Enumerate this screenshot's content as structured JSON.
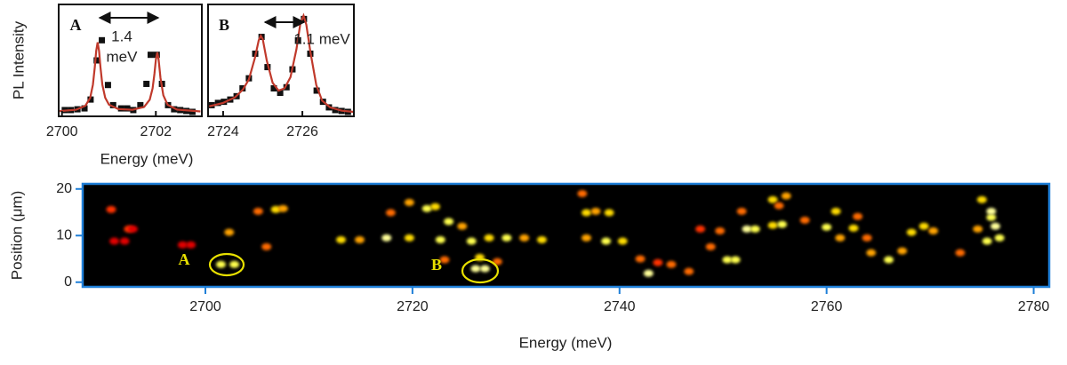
{
  "chart_data": [
    {
      "type": "scatter",
      "xlabel": "Energy (meV)",
      "ylabel": "PL Intensity",
      "xlim": [
        2699.93,
        2702.98
      ],
      "ylim": [
        0,
        1
      ],
      "xticks": [
        2700,
        2702
      ],
      "annotations": [
        "A",
        "1.4",
        "meV"
      ],
      "series": [
        {
          "color": "#111111",
          "marker": "square",
          "x": [
            2700.06,
            2700.19,
            2700.33,
            2700.48,
            2700.61,
            2700.74,
            2700.85,
            2700.98,
            2701.09,
            2701.26,
            2701.39,
            2701.52,
            2701.67,
            2701.8,
            2701.89,
            2702.02,
            2702.13,
            2702.26,
            2702.39,
            2702.52,
            2702.65,
            2702.78
          ],
          "values": [
            0.056,
            0.056,
            0.063,
            0.071,
            0.15,
            0.5,
            0.68,
            0.28,
            0.1,
            0.071,
            0.071,
            0.056,
            0.1,
            0.29,
            0.55,
            0.55,
            0.29,
            0.1,
            0.063,
            0.056,
            0.048,
            0.04
          ]
        },
        {
          "color": "#c0392b",
          "marker": "line",
          "x": [
            2699.95,
            2700.3,
            2700.5,
            2700.6,
            2700.66,
            2700.7,
            2700.73,
            2700.76,
            2700.79,
            2700.82,
            2700.86,
            2700.92,
            2701.0,
            2701.2,
            2701.5,
            2701.75,
            2701.87,
            2701.93,
            2701.97,
            2702.0,
            2702.03,
            2702.06,
            2702.1,
            2702.16,
            2702.25,
            2702.45,
            2702.95
          ],
          "values": [
            0.047,
            0.059,
            0.095,
            0.165,
            0.283,
            0.438,
            0.585,
            0.661,
            0.585,
            0.438,
            0.283,
            0.167,
            0.105,
            0.065,
            0.059,
            0.084,
            0.149,
            0.249,
            0.381,
            0.507,
            0.572,
            0.507,
            0.342,
            0.188,
            0.103,
            0.06,
            0.044
          ]
        }
      ]
    },
    {
      "type": "scatter",
      "xlim": [
        2723.62,
        2727.3
      ],
      "ylim": [
        0,
        1
      ],
      "xticks": [
        2724,
        2726
      ],
      "annotations": [
        "B",
        "1.1 meV"
      ],
      "series": [
        {
          "color": "#111111",
          "marker": "square",
          "x": [
            2723.71,
            2723.87,
            2724.02,
            2724.18,
            2724.34,
            2724.49,
            2724.65,
            2724.81,
            2724.97,
            2725.12,
            2725.28,
            2725.44,
            2725.6,
            2725.75,
            2725.89,
            2726.04,
            2726.2,
            2726.36,
            2726.52,
            2726.67,
            2726.83,
            2726.99,
            2727.15
          ],
          "values": [
            0.1,
            0.12,
            0.13,
            0.15,
            0.18,
            0.25,
            0.34,
            0.56,
            0.71,
            0.44,
            0.25,
            0.21,
            0.26,
            0.42,
            0.68,
            0.87,
            0.56,
            0.23,
            0.13,
            0.08,
            0.056,
            0.048,
            0.04
          ]
        },
        {
          "color": "#c0392b",
          "marker": "line",
          "x": [
            2723.65,
            2724.0,
            2724.3,
            2724.5,
            2724.65,
            2724.8,
            2724.9,
            2724.95,
            2725.0,
            2725.1,
            2725.25,
            2725.4,
            2725.55,
            2725.7,
            2725.85,
            2725.95,
            2726.03,
            2726.1,
            2726.2,
            2726.35,
            2726.5,
            2726.7,
            2727.0,
            2727.3
          ],
          "values": [
            0.09,
            0.12,
            0.17,
            0.24,
            0.33,
            0.52,
            0.68,
            0.72,
            0.69,
            0.5,
            0.3,
            0.23,
            0.25,
            0.35,
            0.6,
            0.83,
            0.9,
            0.82,
            0.58,
            0.28,
            0.14,
            0.08,
            0.05,
            0.04
          ]
        }
      ]
    },
    {
      "type": "heatmap",
      "xlabel": "Energy (meV)",
      "ylabel": "Position (μm)",
      "xlim": [
        2688.15,
        2781.5
      ],
      "ylim": [
        -1,
        21.1
      ],
      "xticks": [
        2700,
        2720,
        2740,
        2760,
        2780
      ],
      "yticks": [
        0,
        10,
        20
      ],
      "colormap": "hot",
      "background": "#000000",
      "axis_color": "#1e7fd8",
      "annotations": [
        "A",
        "B"
      ],
      "x": [
        2690.9,
        2692.6,
        2693.0,
        2691.2,
        2692.2,
        2697.8,
        2698.6,
        2701.5,
        2702.8,
        2702.3,
        2705.9,
        2705.1,
        2706.8,
        2707.5,
        2713.1,
        2714.9,
        2717.5,
        2719.7,
        2717.9,
        2719.7,
        2721.4,
        2722.2,
        2723.5,
        2724.8,
        2722.7,
        2725.7,
        2727.4,
        2729.1,
        2730.8,
        2732.5,
        2723.1,
        2726.5,
        2728.2,
        2726.1,
        2727.0,
        2736.4,
        2736.8,
        2737.7,
        2739.0,
        2736.8,
        2738.7,
        2740.3,
        2742.0,
        2743.7,
        2745.0,
        2742.8,
        2746.7,
        2747.8,
        2749.7,
        2748.8,
        2750.4,
        2751.2,
        2751.8,
        2752.3,
        2753.1,
        2754.8,
        2755.7,
        2754.8,
        2756.1,
        2755.4,
        2757.9,
        2760.0,
        2760.9,
        2761.3,
        2762.6,
        2763.0,
        2763.9,
        2764.3,
        2766.0,
        2767.3,
        2768.2,
        2769.4,
        2770.3,
        2772.9,
        2774.6,
        2775.9,
        2776.3,
        2775.5,
        2776.7,
        2775.0,
        2775.9
      ],
      "y": [
        15.6,
        11.4,
        11.4,
        8.8,
        8.8,
        8.0,
        8.0,
        3.8,
        3.8,
        10.7,
        7.6,
        15.2,
        15.6,
        15.8,
        9.1,
        9.1,
        9.5,
        9.5,
        14.9,
        17.1,
        15.8,
        16.2,
        13.0,
        12.0,
        9.1,
        8.8,
        9.5,
        9.5,
        9.5,
        9.1,
        4.8,
        5.3,
        4.4,
        2.9,
        2.9,
        19.0,
        14.9,
        15.2,
        14.9,
        9.5,
        8.8,
        8.8,
        5.0,
        4.2,
        3.8,
        1.9,
        2.3,
        11.4,
        11.0,
        7.6,
        4.8,
        4.8,
        15.2,
        11.4,
        11.4,
        12.2,
        12.4,
        17.7,
        18.5,
        16.4,
        13.3,
        11.8,
        15.2,
        9.5,
        11.6,
        14.1,
        9.5,
        6.3,
        4.8,
        6.7,
        10.7,
        12.0,
        11.0,
        6.3,
        11.4,
        13.9,
        12.0,
        8.8,
        9.5,
        17.7,
        15.2
      ],
      "values": [
        0.5,
        0.5,
        0.4,
        0.4,
        0.4,
        0.4,
        0.4,
        0.9,
        0.9,
        0.7,
        0.6,
        0.6,
        0.8,
        0.7,
        0.8,
        0.7,
        1.0,
        0.8,
        0.6,
        0.7,
        0.9,
        0.8,
        0.9,
        0.7,
        0.9,
        0.9,
        0.8,
        0.9,
        0.7,
        0.8,
        0.6,
        0.8,
        0.6,
        1.0,
        1.0,
        0.6,
        0.8,
        0.7,
        0.8,
        0.7,
        0.9,
        0.8,
        0.6,
        0.5,
        0.6,
        1.0,
        0.6,
        0.5,
        0.6,
        0.6,
        0.9,
        0.9,
        0.6,
        1.0,
        0.9,
        0.8,
        0.9,
        0.8,
        0.7,
        0.6,
        0.6,
        0.9,
        0.8,
        0.7,
        0.8,
        0.6,
        0.6,
        0.7,
        0.9,
        0.7,
        0.8,
        0.8,
        0.7,
        0.6,
        0.7,
        0.9,
        1.0,
        0.9,
        0.9,
        0.8,
        1.0
      ]
    }
  ]
}
